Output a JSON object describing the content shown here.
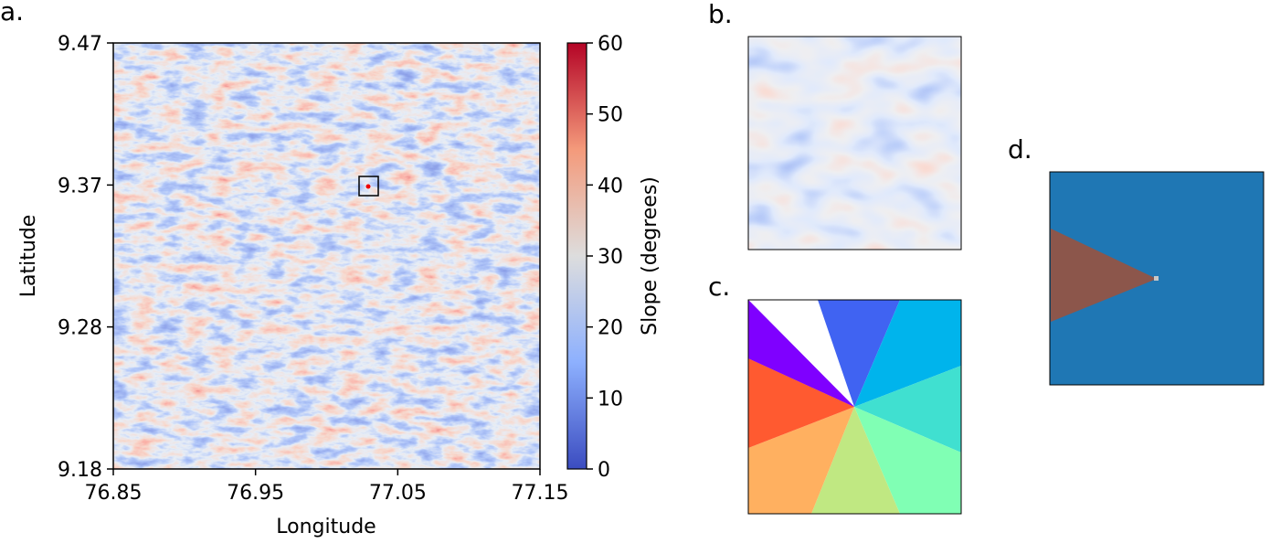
{
  "panel_labels": [
    "a.",
    "b.",
    "c.",
    "d."
  ],
  "chart_data": {
    "type": "heatmap",
    "x_label": "Longitude",
    "y_label": "Latitude",
    "xlim": [
      76.85,
      77.15
    ],
    "xticks": [
      76.85,
      76.95,
      77.05,
      77.15
    ],
    "ylim": [
      9.18,
      9.47
    ],
    "yticks": [
      9.18,
      {
        "value": 9.2767,
        "label": "9.28"
      },
      {
        "value": 9.3733,
        "label": "9.37"
      },
      9.47
    ],
    "colorbar": {
      "label": "Slope (degrees)",
      "lim": [
        0,
        60
      ],
      "ticks": [
        0,
        10,
        20,
        30,
        40,
        50,
        60
      ]
    }
  }
}
